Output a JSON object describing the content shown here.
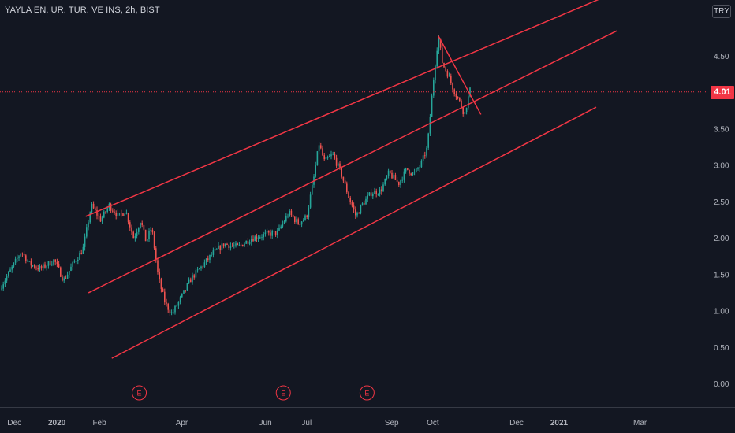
{
  "header": {
    "symbol_title": "YAYLA EN. UR. TUR. VE INS, 2h, BIST",
    "currency": "TRY"
  },
  "last_price_label": "4.01",
  "colors": {
    "background": "#131722",
    "up": "#26a69a",
    "down": "#ef5350",
    "trendline": "#f23645",
    "price_line": "#f23645",
    "axis_text": "#b2b5be",
    "axis_border": "#363a45"
  },
  "chart_data": {
    "type": "candlestick",
    "symbol": "YAYLA EN. UR. TUR. VE INS",
    "interval": "2h",
    "exchange": "BIST",
    "currency": "TRY",
    "last_price": 4.01,
    "ylim": [
      -0.25,
      5.05
    ],
    "y_ticks": [
      "0.00",
      "0.50",
      "1.00",
      "1.50",
      "2.00",
      "2.50",
      "3.00",
      "3.50",
      "4.00",
      "4.50"
    ],
    "x_ticks": [
      "Dec",
      "2020",
      "Feb",
      "Apr",
      "Jun",
      "Jul",
      "Sep",
      "Oct",
      "Dec",
      "2021",
      "Mar"
    ],
    "price_path": [
      [
        "2019-11-20",
        1.3
      ],
      [
        "2019-11-28",
        1.55
      ],
      [
        "2019-12-06",
        1.82
      ],
      [
        "2019-12-12",
        1.65
      ],
      [
        "2019-12-20",
        1.58
      ],
      [
        "2019-12-30",
        1.7
      ],
      [
        "2020-01-06",
        1.42
      ],
      [
        "2020-01-12",
        1.62
      ],
      [
        "2020-01-20",
        1.85
      ],
      [
        "2020-01-26",
        2.45
      ],
      [
        "2020-02-02",
        2.25
      ],
      [
        "2020-02-08",
        2.45
      ],
      [
        "2020-02-15",
        2.3
      ],
      [
        "2020-02-20",
        2.38
      ],
      [
        "2020-02-26",
        2.0
      ],
      [
        "2020-03-02",
        2.25
      ],
      [
        "2020-03-06",
        1.95
      ],
      [
        "2020-03-10",
        2.15
      ],
      [
        "2020-03-15",
        1.45
      ],
      [
        "2020-03-20",
        1.1
      ],
      [
        "2020-03-25",
        0.96
      ],
      [
        "2020-04-01",
        1.2
      ],
      [
        "2020-04-08",
        1.45
      ],
      [
        "2020-04-16",
        1.62
      ],
      [
        "2020-04-24",
        1.8
      ],
      [
        "2020-05-02",
        1.92
      ],
      [
        "2020-05-12",
        1.88
      ],
      [
        "2020-05-22",
        2.0
      ],
      [
        "2020-06-01",
        2.05
      ],
      [
        "2020-06-10",
        2.08
      ],
      [
        "2020-06-18",
        2.35
      ],
      [
        "2020-06-25",
        2.2
      ],
      [
        "2020-07-01",
        2.3
      ],
      [
        "2020-07-06",
        2.8
      ],
      [
        "2020-07-10",
        3.3
      ],
      [
        "2020-07-14",
        3.05
      ],
      [
        "2020-07-20",
        3.15
      ],
      [
        "2020-07-26",
        2.9
      ],
      [
        "2020-08-01",
        2.55
      ],
      [
        "2020-08-06",
        2.3
      ],
      [
        "2020-08-10",
        2.45
      ],
      [
        "2020-08-17",
        2.62
      ],
      [
        "2020-08-24",
        2.65
      ],
      [
        "2020-08-30",
        2.9
      ],
      [
        "2020-09-06",
        2.75
      ],
      [
        "2020-09-12",
        2.95
      ],
      [
        "2020-09-17",
        2.88
      ],
      [
        "2020-09-22",
        3.0
      ],
      [
        "2020-09-27",
        3.25
      ],
      [
        "2020-10-01",
        4.1
      ],
      [
        "2020-10-05",
        4.78
      ],
      [
        "2020-10-08",
        4.4
      ],
      [
        "2020-10-12",
        4.25
      ],
      [
        "2020-10-16",
        4.05
      ],
      [
        "2020-10-21",
        3.85
      ],
      [
        "2020-10-24",
        3.7
      ],
      [
        "2020-10-27",
        3.95
      ],
      [
        "2020-10-29",
        4.1
      ]
    ],
    "trendlines": [
      {
        "name": "channel-upper",
        "from": [
          "2020-01-22",
          2.3
        ],
        "to": [
          "2021-02-20",
          5.45
        ]
      },
      {
        "name": "channel-middle",
        "from": [
          "2020-01-24",
          1.25
        ],
        "to": [
          "2021-02-12",
          4.85
        ]
      },
      {
        "name": "channel-lower",
        "from": [
          "2020-02-10",
          0.35
        ],
        "to": [
          "2021-01-28",
          3.8
        ]
      },
      {
        "name": "pullback-line",
        "from": [
          "2020-10-05",
          4.78
        ],
        "to": [
          "2020-11-05",
          3.7
        ]
      }
    ],
    "events": [
      {
        "date": "2020-03-01",
        "label": "E"
      },
      {
        "date": "2020-06-14",
        "label": "E"
      },
      {
        "date": "2020-08-14",
        "label": "E"
      }
    ]
  }
}
